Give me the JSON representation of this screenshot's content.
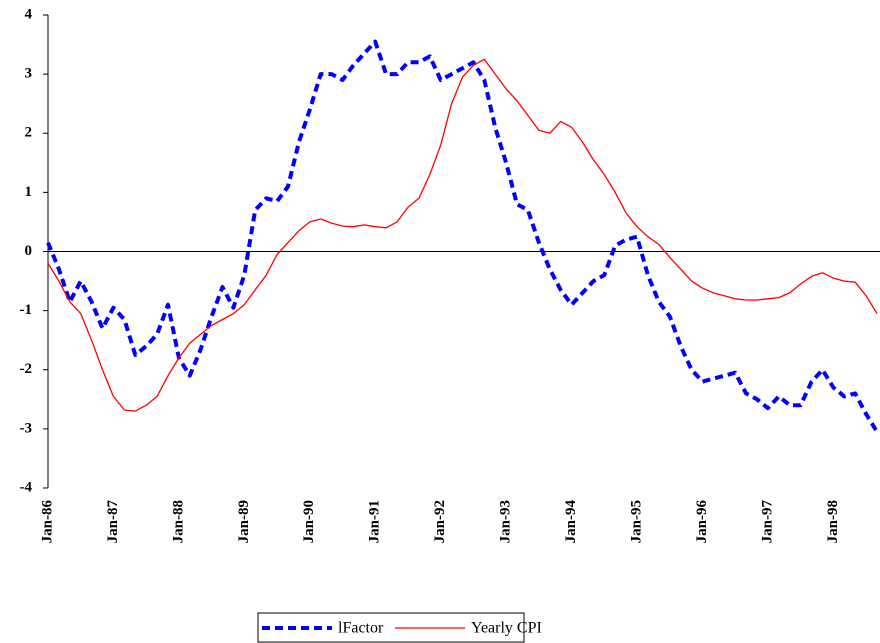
{
  "chart_data": {
    "type": "line",
    "categories": [
      "Jan-86",
      null,
      null,
      null,
      null,
      null,
      "Jan-87",
      null,
      null,
      null,
      null,
      null,
      "Jan-88",
      null,
      null,
      null,
      null,
      null,
      "Jan-89",
      null,
      null,
      null,
      null,
      null,
      "Jan-90",
      null,
      null,
      null,
      null,
      null,
      "Jan-91",
      null,
      null,
      null,
      null,
      null,
      "Jan-92",
      null,
      null,
      null,
      null,
      null,
      "Jan-93",
      null,
      null,
      null,
      null,
      null,
      "Jan-94",
      null,
      null,
      null,
      null,
      null,
      "Jan-95",
      null,
      null,
      null,
      null,
      null,
      "Jan-96",
      null,
      null,
      null,
      null,
      null,
      "Jan-97",
      null,
      null,
      null,
      null,
      null,
      "Jan-98",
      null,
      null,
      null,
      null
    ],
    "series": [
      {
        "name": "lFactor",
        "color": "#0000ff",
        "style": "dashed",
        "values": [
          0.15,
          -0.3,
          -0.85,
          -0.5,
          -0.85,
          -1.3,
          -0.95,
          -1.15,
          -1.75,
          -1.6,
          -1.4,
          -0.9,
          -1.8,
          -2.1,
          -1.65,
          -1.1,
          -0.6,
          -0.95,
          -0.4,
          0.7,
          0.9,
          0.85,
          1.1,
          1.85,
          2.4,
          3.0,
          3.0,
          2.9,
          3.15,
          3.35,
          3.55,
          3.0,
          3.0,
          3.2,
          3.2,
          3.3,
          2.9,
          3.0,
          3.1,
          3.2,
          2.9,
          2.1,
          1.5,
          0.8,
          0.7,
          0.15,
          -0.3,
          -0.65,
          -0.9,
          -0.7,
          -0.5,
          -0.4,
          0.1,
          0.2,
          0.25,
          -0.4,
          -0.85,
          -1.1,
          -1.6,
          -2.0,
          -2.2,
          -2.15,
          -2.1,
          -2.05,
          -2.4,
          -2.5,
          -2.65,
          -2.45,
          -2.6,
          -2.6,
          -2.2,
          -2.0,
          -2.3,
          -2.45,
          -2.4,
          -2.75,
          -3.05
        ]
      },
      {
        "name": "Yearly CPI",
        "color": "#ff0000",
        "style": "solid",
        "values": [
          -0.2,
          -0.5,
          -0.85,
          -1.05,
          -1.5,
          -2.0,
          -2.45,
          -2.68,
          -2.7,
          -2.6,
          -2.45,
          -2.1,
          -1.8,
          -1.55,
          -1.4,
          -1.25,
          -1.15,
          -1.05,
          -0.9,
          -0.65,
          -0.4,
          -0.05,
          0.15,
          0.35,
          0.5,
          0.55,
          0.48,
          0.43,
          0.42,
          0.45,
          0.42,
          0.4,
          0.5,
          0.75,
          0.9,
          1.3,
          1.8,
          2.5,
          2.95,
          3.15,
          3.25,
          3.0,
          2.75,
          2.55,
          2.3,
          2.05,
          2.0,
          2.2,
          2.1,
          1.85,
          1.55,
          1.3,
          1.0,
          0.65,
          0.42,
          0.25,
          0.12,
          -0.1,
          -0.3,
          -0.5,
          -0.62,
          -0.7,
          -0.75,
          -0.8,
          -0.82,
          -0.82,
          -0.8,
          -0.78,
          -0.7,
          -0.55,
          -0.42,
          -0.36,
          -0.45,
          -0.5,
          -0.52,
          -0.75,
          -1.05
        ]
      }
    ],
    "ylim": [
      -4,
      4
    ],
    "yticks": [
      -4,
      -3,
      -2,
      -1,
      0,
      1,
      2,
      3,
      4
    ],
    "zero_line": true
  }
}
